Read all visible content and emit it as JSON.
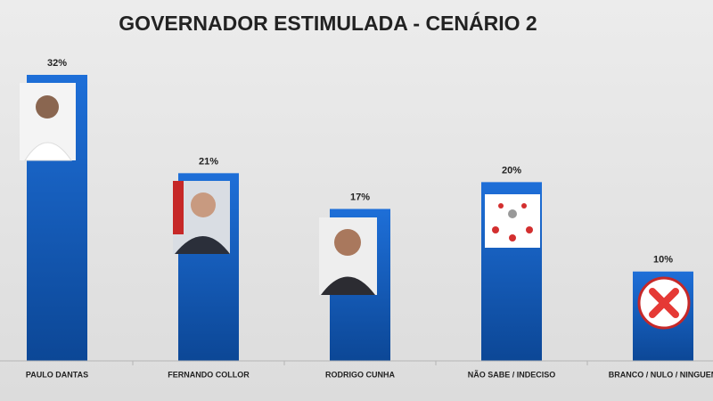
{
  "chart_data": {
    "type": "bar",
    "title": "GOVERNADOR ESTIMULADA - CENÁRIO 2",
    "categories": [
      "PAULO DANTAS",
      "FERNANDO COLLOR",
      "RODRIGO CUNHA",
      "NÃO SABE / INDECISO",
      "BRANCO / NULO / NINGUEM"
    ],
    "values": [
      32,
      21,
      17,
      20,
      10
    ],
    "value_labels": [
      "32%",
      "21%",
      "17%",
      "20%",
      "10%"
    ],
    "color": "#1565c0"
  }
}
